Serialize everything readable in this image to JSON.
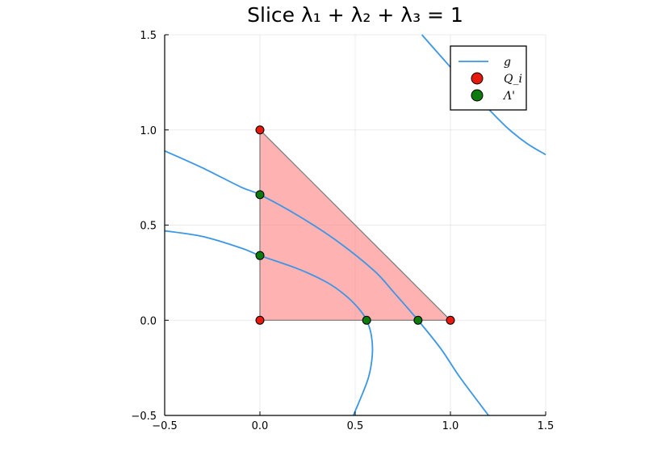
{
  "chart_data": {
    "type": "line",
    "title": "Slice λ₁ + λ₂ + λ₃ = 1",
    "xlim": [
      -0.5,
      1.5
    ],
    "ylim": [
      -0.5,
      1.5
    ],
    "x_ticks": [
      "−0.5",
      "0.0",
      "0.5",
      "1.0",
      "1.5"
    ],
    "y_ticks": [
      "−0.5",
      "0.0",
      "0.5",
      "1.0",
      "1.5"
    ],
    "grid": true,
    "legend_position": "top-right",
    "region": {
      "name": "simplex",
      "vertices": [
        [
          0,
          0
        ],
        [
          1,
          0
        ],
        [
          0,
          1
        ]
      ],
      "color": "#ff7f7f"
    },
    "series": [
      {
        "name": "g",
        "kind": "line",
        "color": "#3b96e6",
        "curves": [
          [
            [
              0.85,
              1.5
            ],
            [
              1.0,
              1.33
            ],
            [
              1.1,
              1.22
            ],
            [
              1.2,
              1.11
            ],
            [
              1.3,
              1.01
            ],
            [
              1.4,
              0.93
            ],
            [
              1.5,
              0.87
            ]
          ],
          [
            [
              -0.5,
              0.89
            ],
            [
              -0.3,
              0.8
            ],
            [
              -0.1,
              0.7
            ],
            [
              0.0,
              0.66
            ],
            [
              0.2,
              0.55
            ],
            [
              0.4,
              0.42
            ],
            [
              0.6,
              0.26
            ],
            [
              0.7,
              0.15
            ],
            [
              0.83,
              0.0
            ],
            [
              0.95,
              -0.15
            ],
            [
              1.05,
              -0.3
            ],
            [
              1.2,
              -0.5
            ]
          ],
          [
            [
              -0.5,
              0.47
            ],
            [
              -0.3,
              0.44
            ],
            [
              -0.1,
              0.38
            ],
            [
              0.0,
              0.34
            ],
            [
              0.2,
              0.27
            ],
            [
              0.35,
              0.2
            ],
            [
              0.45,
              0.13
            ],
            [
              0.52,
              0.06
            ],
            [
              0.56,
              0.0
            ],
            [
              0.585,
              -0.08
            ],
            [
              0.59,
              -0.18
            ],
            [
              0.57,
              -0.3
            ],
            [
              0.52,
              -0.43
            ],
            [
              0.49,
              -0.5
            ]
          ]
        ]
      },
      {
        "name": "Q_i",
        "kind": "scatter",
        "color": "#e6190d",
        "points": [
          [
            0,
            0
          ],
          [
            1,
            0
          ],
          [
            0,
            1
          ]
        ]
      },
      {
        "name": "Λ'",
        "kind": "scatter",
        "color": "#0d7a0d",
        "points": [
          [
            0,
            0.66
          ],
          [
            0,
            0.34
          ],
          [
            0.56,
            0
          ],
          [
            0.83,
            0
          ]
        ]
      }
    ]
  }
}
